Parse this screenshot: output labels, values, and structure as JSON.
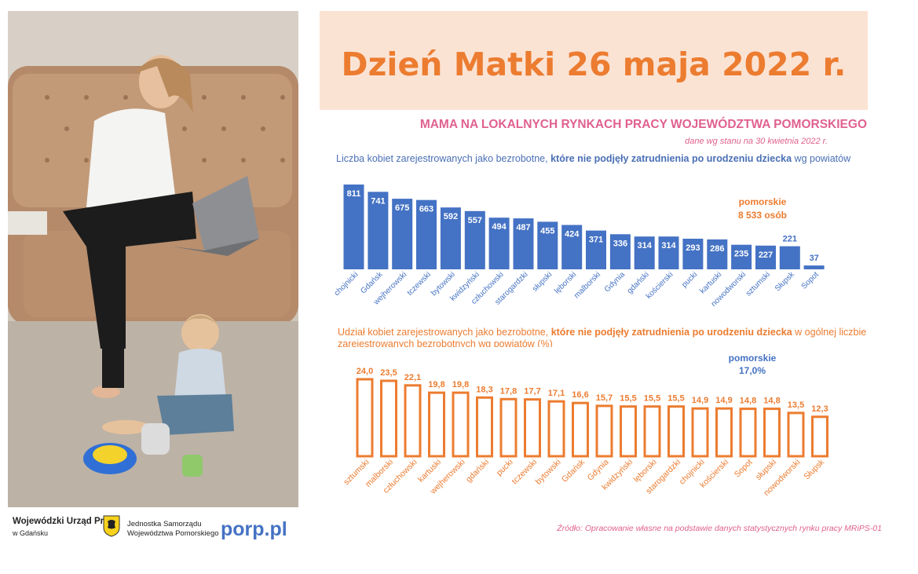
{
  "header": {
    "title": "Dzień Matki 26 maja 2022 r.",
    "subtitle": "MAMA NA LOKALNYCH RYNKACH PRACY WOJEWÓDZTWA POMORSKIEGO",
    "data_date_prefix": "dane wg ",
    "data_date_italic": "stanu na 30 kwietnia 2022 r."
  },
  "colors": {
    "accent_orange": "#ec7c30",
    "bar_blue": "#4472c4",
    "pink": "#e0618f",
    "banner_bg": "#fbe3d4"
  },
  "chart_data": [
    {
      "type": "bar",
      "title_parts": [
        "Liczba kobiet zarejestrowanych jako bezrobotne, ",
        "które nie podjęły zatrudnienia po urodzeniu dziecka",
        " wg powiatów"
      ],
      "categories": [
        "chojnicki",
        "Gdańsk",
        "wejherowski",
        "tczewski",
        "bytowski",
        "kwidzyński",
        "człuchowski",
        "starogardzki",
        "słupski",
        "lęborski",
        "malborski",
        "Gdynia",
        "gdański",
        "kościerski",
        "pucki",
        "kartuski",
        "nowodworski",
        "sztumski",
        "Słupsk",
        "Sopot"
      ],
      "values": [
        811,
        741,
        675,
        663,
        592,
        557,
        494,
        487,
        455,
        424,
        371,
        336,
        314,
        314,
        293,
        286,
        235,
        227,
        221,
        37
      ],
      "value_labels": [
        "811",
        "741",
        "675",
        "663",
        "592",
        "557",
        "494",
        "487",
        "455",
        "424",
        "371",
        "336",
        "314",
        "314",
        "293",
        "286",
        "235",
        "227",
        "221",
        "37"
      ],
      "annotation": {
        "line1": "pomorskie",
        "line2": "8 533 osób"
      },
      "ylim": [
        0,
        811
      ],
      "grid": false
    },
    {
      "type": "bar",
      "title_parts": [
        "Udział kobiet zarejestrowanych jako bezrobotne, ",
        "które nie podjęły zatrudnienia po urodzeniu dziecka",
        " w ogólnej liczbie zarejestrowanych bezrobotnych wg powiatów  (%)"
      ],
      "categories": [
        "sztumski",
        "malborski",
        "człuchowski",
        "kartuski",
        "wejherowski",
        "gdański",
        "pucki",
        "tczewski",
        "bytowski",
        "Gdańsk",
        "Gdynia",
        "kwidzyński",
        "lęborski",
        "starogardzki",
        "chojnicki",
        "kościerski",
        "Sopot",
        "słupski",
        "nowodworski",
        "Słupsk"
      ],
      "values": [
        24.0,
        23.5,
        22.1,
        19.8,
        19.8,
        18.3,
        17.8,
        17.7,
        17.1,
        16.6,
        15.7,
        15.5,
        15.5,
        15.5,
        14.9,
        14.9,
        14.8,
        14.8,
        13.5,
        12.3
      ],
      "value_labels": [
        "24,0",
        "23,5",
        "22,1",
        "19,8",
        "19,8",
        "18,3",
        "17,8",
        "17,7",
        "17,1",
        "16,6",
        "15,7",
        "15,5",
        "15,5",
        "15,5",
        "14,9",
        "14,9",
        "14,8",
        "14,8",
        "13,5",
        "12,3"
      ],
      "annotation": {
        "line1": "pomorskie",
        "line2": "17,0%"
      },
      "ylim": [
        0,
        24
      ],
      "grid": false
    }
  ],
  "footer": {
    "wup_name": "Wojewódzki Urząd Pracy",
    "wup_city": "w Gdańsku",
    "js_line1": "Jednostka Samorządu",
    "js_line2": "Województwa Pomorskiego",
    "link": "porp.pl",
    "source": "Źródło: Opracowanie własne na podstawie danych statystycznych rynku pracy MRiPS-01"
  }
}
